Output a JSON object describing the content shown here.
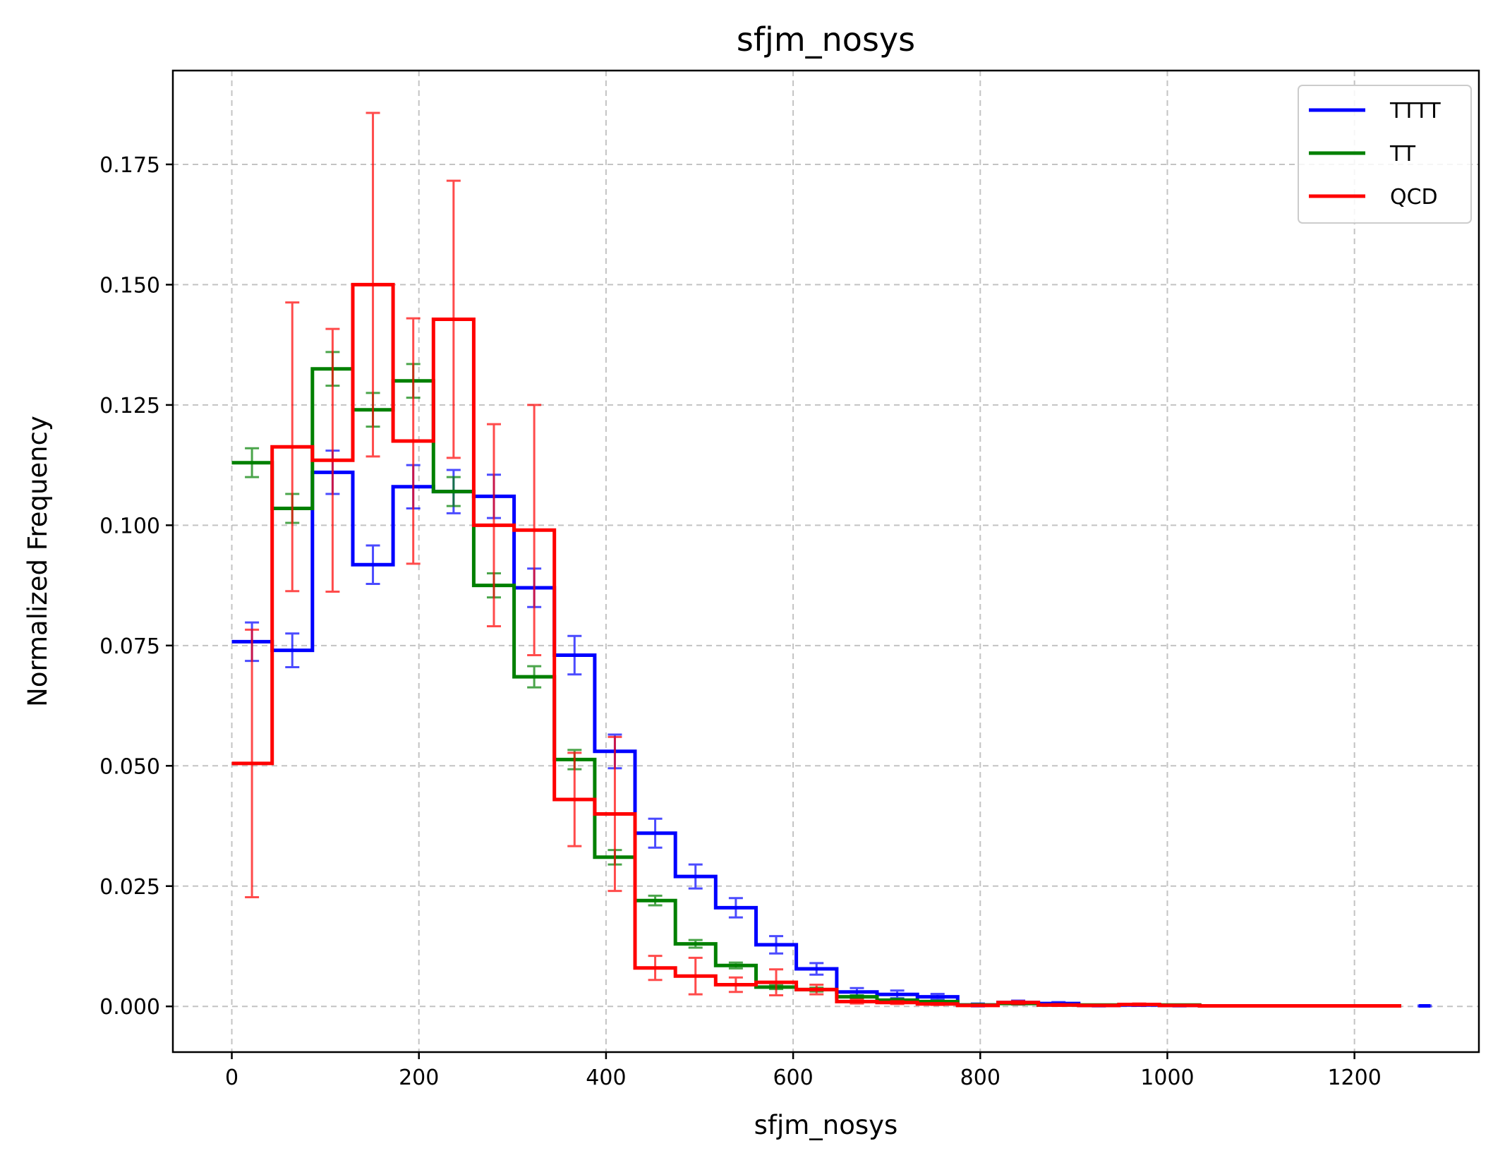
{
  "chart_data": {
    "type": "line",
    "style": "step histogram with error bars",
    "title": "sfjm_nosys",
    "xlabel": "sfjm_nosys",
    "ylabel": "Normalized Frequency",
    "xlim": [
      -63,
      1333
    ],
    "ylim": [
      -0.0095,
      0.1945
    ],
    "grid": true,
    "legend_position": "top-right",
    "xticks": [
      0,
      200,
      400,
      600,
      800,
      1000,
      1200
    ],
    "xtick_labels": [
      "0",
      "200",
      "400",
      "600",
      "800",
      "1000",
      "1200"
    ],
    "yticks": [
      0.0,
      0.025,
      0.05,
      0.075,
      0.1,
      0.125,
      0.15,
      0.175
    ],
    "ytick_labels": [
      "0.000",
      "0.025",
      "0.050",
      "0.075",
      "0.100",
      "0.125",
      "0.150",
      "0.175"
    ],
    "bin_edges": [
      0,
      43.1,
      86.2,
      129.3,
      172.4,
      215.5,
      258.6,
      301.7,
      344.8,
      387.9,
      431,
      474.1,
      517.2,
      560.3,
      603.4,
      646.6,
      689.7,
      732.8,
      775.9,
      819,
      862.1,
      905.2,
      948.3,
      991.4,
      1034.5,
      1077.6,
      1120.7,
      1163.8,
      1206.9,
      1250
    ],
    "series": [
      {
        "name": "TTTT",
        "color": "#0000ff",
        "values": [
          0.0758,
          0.074,
          0.111,
          0.0918,
          0.108,
          0.107,
          0.106,
          0.087,
          0.073,
          0.053,
          0.036,
          0.027,
          0.0205,
          0.0128,
          0.0078,
          0.003,
          0.0025,
          0.002,
          0.0003,
          0.0008,
          0.0006,
          0.0002,
          0.0003,
          0.0002,
          0.0001,
          0.0001,
          0.0001,
          0.0001,
          0.0001
        ],
        "errors": [
          0.004,
          0.0035,
          0.0045,
          0.004,
          0.0045,
          0.0045,
          0.0045,
          0.004,
          0.004,
          0.0035,
          0.003,
          0.0025,
          0.002,
          0.0018,
          0.0012,
          0.0008,
          0.0008,
          0.0006,
          0.0003,
          0.0004,
          0.0003,
          0.0002,
          0.0002,
          0.0002,
          0.0001,
          0.0001,
          0.0001,
          0.0001,
          0.0001
        ],
        "extra_point": {
          "x": 1275,
          "y": 0.0001,
          "error": 0.0001
        }
      },
      {
        "name": "TT",
        "color": "#008000",
        "values": [
          0.113,
          0.1035,
          0.1325,
          0.124,
          0.13,
          0.107,
          0.0875,
          0.0685,
          0.0513,
          0.031,
          0.022,
          0.013,
          0.0085,
          0.004,
          0.0035,
          0.002,
          0.0013,
          0.001,
          0.0003,
          0.0006,
          0.0003,
          0.0003,
          0.0004,
          0.0003,
          0.0001,
          0.0001,
          0.0001,
          0.0001,
          0.0001
        ],
        "errors": [
          0.003,
          0.003,
          0.0035,
          0.0035,
          0.0035,
          0.003,
          0.0025,
          0.0022,
          0.002,
          0.0015,
          0.001,
          0.0008,
          0.0006,
          0.0004,
          0.0004,
          0.0003,
          0.0003,
          0.0002,
          0.0002,
          0.0002,
          0.0001,
          0.0001,
          0.0001,
          0.0001,
          0.0001,
          0.0001,
          0.0001,
          0.0001,
          0.0001
        ]
      },
      {
        "name": "QCD",
        "color": "#ff0000",
        "values": [
          0.0505,
          0.1163,
          0.1135,
          0.15,
          0.1175,
          0.1428,
          0.1,
          0.099,
          0.043,
          0.04,
          0.008,
          0.0063,
          0.0045,
          0.005,
          0.0035,
          0.001,
          0.0008,
          0.0005,
          0.0002,
          0.0008,
          0.0003,
          0.0002,
          0.0004,
          0.0002,
          0.0001,
          0.0001,
          0.0001,
          0.0001,
          0.0001
        ],
        "errors": [
          0.0278,
          0.03,
          0.0273,
          0.0357,
          0.0255,
          0.0288,
          0.021,
          0.026,
          0.0097,
          0.016,
          0.0025,
          0.0038,
          0.0015,
          0.0027,
          0.001,
          0.0004,
          0.0003,
          0.0002,
          0.0001,
          0.0003,
          0.0002,
          0.0001,
          0.0002,
          0.0001,
          0.0001,
          0.0001,
          0.0001,
          0.0001,
          0.0001
        ]
      }
    ]
  }
}
